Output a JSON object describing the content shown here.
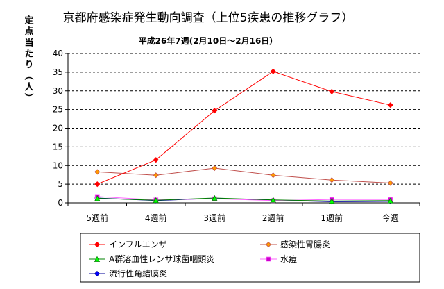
{
  "chart_data": {
    "type": "line",
    "title": "京都府感染症発生動向調査（上位5疾患の推移グラフ）",
    "subtitle": "平成26年7週(2月10日～2月16日）",
    "ylabel": "定点当たり（人）",
    "xlabel": "",
    "categories": [
      "5週前",
      "4週前",
      "3週前",
      "2週前",
      "1週前",
      "今週"
    ],
    "ylim": [
      0,
      40
    ],
    "yticks": [
      0,
      5,
      10,
      15,
      20,
      25,
      30,
      35,
      40
    ],
    "grid": true,
    "legend_position": "bottom",
    "series": [
      {
        "name": "インフルエンザ",
        "color": "#ff0000",
        "marker": "diamond",
        "values": [
          5.0,
          11.5,
          24.7,
          35.2,
          29.8,
          26.2
        ]
      },
      {
        "name": "感染性胃腸炎",
        "color": "#c0504d",
        "marker_fill": "#ff9900",
        "marker": "diamond",
        "values": [
          8.3,
          7.4,
          9.3,
          7.4,
          6.1,
          5.3
        ]
      },
      {
        "name": "A群溶血性レンサ球菌咽頭炎",
        "color": "#008000",
        "marker_fill": "#00ff00",
        "marker": "triangle",
        "values": [
          1.2,
          0.7,
          1.3,
          0.8,
          0.5,
          0.6
        ]
      },
      {
        "name": "水痘",
        "color": "#ff66ff",
        "marker_fill": "#cc00cc",
        "marker": "square",
        "values": [
          1.7,
          0.8,
          1.1,
          0.6,
          0.9,
          0.9
        ]
      },
      {
        "name": "流行性角結膜炎",
        "color": "#000099",
        "marker_fill": "#0000ff",
        "marker": "diamond",
        "values": [
          1.3,
          0.6,
          1.2,
          0.7,
          0.3,
          0.4
        ]
      }
    ]
  }
}
